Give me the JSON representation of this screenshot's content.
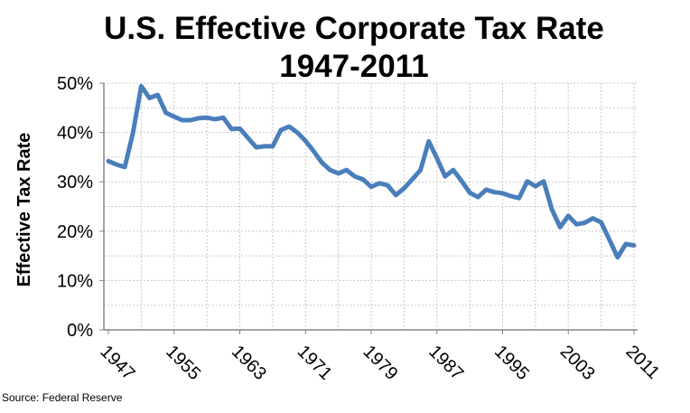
{
  "chart_data": {
    "type": "line",
    "title": "U.S. Effective Corporate Tax Rate",
    "subtitle": "1947-2011",
    "xlabel": "",
    "ylabel": "Effective Tax Rate",
    "source": "Source: Federal Reserve",
    "ylim": [
      0,
      50
    ],
    "xlim": [
      1947,
      2011
    ],
    "grid": true,
    "legend": "none",
    "y_ticks": [
      "0%",
      "10%",
      "20%",
      "30%",
      "40%",
      "50%"
    ],
    "x_ticks": [
      "1947",
      "1955",
      "1963",
      "1971",
      "1979",
      "1987",
      "1995",
      "2003",
      "2011"
    ],
    "line_color": "#4a7ebb",
    "series": [
      {
        "name": "Effective Tax Rate",
        "x_start": 1947,
        "values": [
          34.2,
          33.5,
          33.0,
          40.0,
          49.4,
          47.0,
          47.6,
          44.0,
          43.2,
          42.5,
          42.5,
          42.9,
          43.0,
          42.7,
          43.0,
          40.7,
          40.8,
          38.9,
          37.0,
          37.2,
          37.2,
          40.5,
          41.2,
          40.0,
          38.3,
          36.2,
          33.9,
          32.4,
          31.7,
          32.4,
          31.1,
          30.5,
          29.0,
          29.7,
          29.3,
          27.3,
          28.7,
          30.5,
          32.4,
          38.2,
          34.8,
          31.1,
          32.4,
          30.2,
          27.8,
          26.9,
          28.4,
          27.9,
          27.7,
          27.1,
          26.7,
          30.1,
          29.1,
          30.1,
          24.4,
          20.8,
          23.1,
          21.4,
          21.7,
          22.6,
          21.8,
          18.3,
          14.7,
          17.4,
          17.1
        ]
      }
    ]
  }
}
